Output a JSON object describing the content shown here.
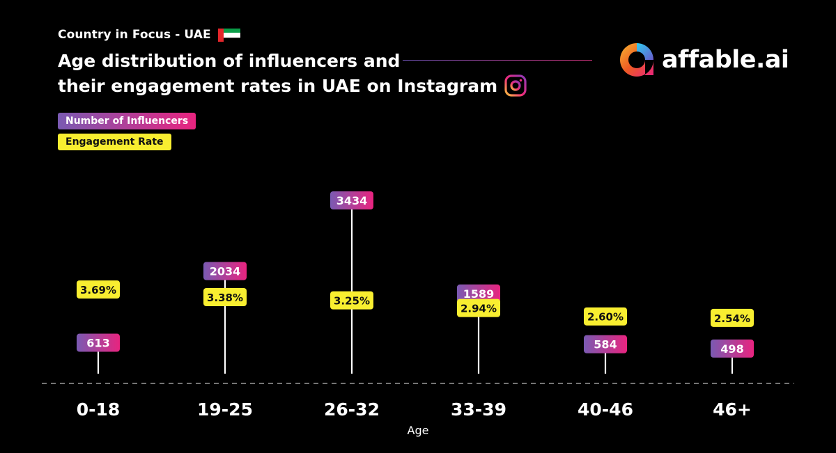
{
  "header": {
    "subtitle": "Country in Focus - UAE",
    "flag_icon": "uae-flag-icon",
    "title_line1": "Age distribution of influencers and",
    "title_line2": "their engagement rates in UAE on Instagram",
    "platform_icon": "instagram-icon"
  },
  "brand": {
    "name": "affable.ai",
    "logo_icon": "affable-logo-icon"
  },
  "legend": {
    "influencers_label": "Number of Influencers",
    "engagement_label": "Engagement Rate"
  },
  "colors": {
    "background": "#000000",
    "influencer_start": "#7a5ab2",
    "influencer_end": "#e8247f",
    "engagement": "#f8ee30",
    "stem": "#ffffff",
    "flag_red": "#e3262b",
    "flag_green": "#0a9d48",
    "flag_white": "#ffffff",
    "flag_black": "#000000"
  },
  "chart_data": {
    "type": "lollipop",
    "title": "Age distribution of influencers and their engagement rates in UAE on Instagram",
    "xlabel": "Age",
    "ylabel": "",
    "categories": [
      "0-18",
      "19-25",
      "26-32",
      "33-39",
      "40-46",
      "46+"
    ],
    "series": [
      {
        "name": "Number of Influencers",
        "values": [
          613,
          2034,
          3434,
          1589,
          584,
          498
        ],
        "labels": [
          "613",
          "2034",
          "3434",
          "1589",
          "584",
          "498"
        ]
      },
      {
        "name": "Engagement Rate",
        "values": [
          3.69,
          3.38,
          3.25,
          2.94,
          2.6,
          2.54
        ],
        "labels": [
          "3.69%",
          "3.38%",
          "3.25%",
          "2.94%",
          "2.60%",
          "2.54%"
        ]
      }
    ]
  }
}
